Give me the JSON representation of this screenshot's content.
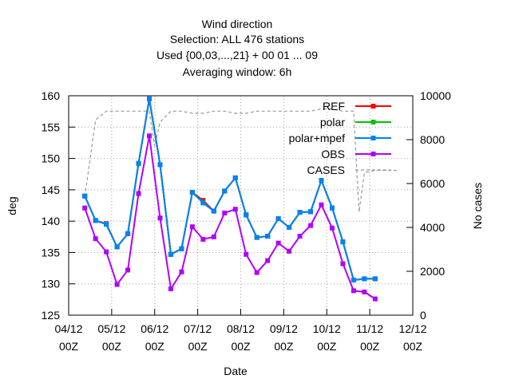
{
  "chart_data": {
    "type": "line",
    "title_lines": [
      "Wind direction",
      "Selection: ALL    476 stations",
      "Used {00,03,...,21} + 00 01 ... 09",
      "Averaging window:  6h"
    ],
    "xlabel": "Date",
    "ylabel": "deg",
    "y2label": "No cases",
    "xlim": [
      0,
      8
    ],
    "ylim": [
      125,
      160
    ],
    "y2lim": [
      0,
      10000
    ],
    "x_ticks": [
      {
        "x": 0,
        "l1": "04/12",
        "l2": "00Z"
      },
      {
        "x": 1,
        "l1": "05/12",
        "l2": "00Z"
      },
      {
        "x": 2,
        "l1": "06/12",
        "l2": "00Z"
      },
      {
        "x": 3,
        "l1": "07/12",
        "l2": "00Z"
      },
      {
        "x": 4,
        "l1": "08/12",
        "l2": "00Z"
      },
      {
        "x": 5,
        "l1": "09/12",
        "l2": "00Z"
      },
      {
        "x": 6,
        "l1": "10/12",
        "l2": "00Z"
      },
      {
        "x": 7,
        "l1": "11/12",
        "l2": "00Z"
      },
      {
        "x": 8,
        "l1": "12/12",
        "l2": "00Z"
      }
    ],
    "y_ticks": [
      125,
      130,
      135,
      140,
      145,
      150,
      155,
      160
    ],
    "y2_ticks": [
      0,
      2000,
      4000,
      6000,
      8000,
      10000
    ],
    "grid": true,
    "legend_position": "top-right",
    "series": [
      {
        "name": "REF",
        "color": "#ff0000",
        "x": [
          0.375,
          0.625,
          0.875,
          1.125,
          1.375,
          1.625,
          1.875,
          2.125,
          2.375,
          2.625,
          2.875,
          3.125,
          3.375,
          3.625,
          3.875,
          4.125,
          4.375,
          4.625,
          4.875,
          5.125,
          5.375,
          5.625,
          5.875,
          6.125,
          6.375,
          6.625,
          6.875,
          7.125
        ],
        "y": [
          144.0,
          140.1,
          139.6,
          135.9,
          138.0,
          149.2,
          159.5,
          149.0,
          134.7,
          135.6,
          144.6,
          143.3,
          141.6,
          144.8,
          146.9,
          141.0,
          137.4,
          137.6,
          140.4,
          139.0,
          141.4,
          141.5,
          146.5,
          142.1,
          136.7,
          130.6,
          130.8,
          130.8
        ]
      },
      {
        "name": "polar",
        "color": "#00c000",
        "x": [
          0.375,
          0.625,
          0.875,
          1.125,
          1.375,
          1.625,
          1.875,
          2.125,
          2.375,
          2.625,
          2.875,
          3.125,
          3.375,
          3.625,
          3.875,
          4.125,
          4.375,
          4.625,
          4.875,
          5.125,
          5.375,
          5.625,
          5.875,
          6.125,
          6.375,
          6.625,
          6.875,
          7.125
        ],
        "y": [
          144.0,
          140.1,
          139.5,
          135.9,
          138.0,
          149.2,
          159.5,
          149.0,
          134.7,
          135.6,
          144.6,
          143.0,
          141.6,
          144.8,
          146.9,
          141.0,
          137.4,
          137.6,
          140.4,
          139.0,
          141.4,
          141.5,
          146.5,
          142.1,
          136.7,
          130.6,
          130.8,
          130.8
        ]
      },
      {
        "name": "polar+mpef",
        "color": "#0080ff",
        "x": [
          0.375,
          0.625,
          0.875,
          1.125,
          1.375,
          1.625,
          1.875,
          2.125,
          2.375,
          2.625,
          2.875,
          3.125,
          3.375,
          3.625,
          3.875,
          4.125,
          4.375,
          4.625,
          4.875,
          5.125,
          5.375,
          5.625,
          5.875,
          6.125,
          6.375,
          6.625,
          6.875,
          7.125
        ],
        "y": [
          144.0,
          140.1,
          139.5,
          135.9,
          138.0,
          149.2,
          159.5,
          149.0,
          134.7,
          135.6,
          144.6,
          142.9,
          141.6,
          144.8,
          146.9,
          141.0,
          137.4,
          137.6,
          140.4,
          139.0,
          141.4,
          141.5,
          146.5,
          142.1,
          136.7,
          130.6,
          130.8,
          130.8
        ]
      },
      {
        "name": "OBS",
        "color": "#b000ff",
        "x": [
          0.375,
          0.625,
          0.875,
          1.125,
          1.375,
          1.625,
          1.875,
          2.125,
          2.375,
          2.625,
          2.875,
          3.125,
          3.375,
          3.625,
          3.875,
          4.125,
          4.375,
          4.625,
          4.875,
          5.125,
          5.375,
          5.625,
          5.875,
          6.125,
          6.375,
          6.625,
          6.875,
          7.125
        ],
        "y": [
          142.1,
          137.2,
          135.1,
          129.9,
          132.2,
          144.4,
          153.6,
          140.5,
          129.2,
          131.9,
          139.1,
          137.1,
          137.5,
          141.3,
          141.9,
          134.7,
          131.8,
          133.7,
          136.5,
          135.2,
          137.6,
          139.3,
          142.6,
          138.9,
          133.2,
          128.9,
          128.7,
          127.6
        ]
      },
      {
        "name": "CASES",
        "color": "#999999",
        "dashed": true,
        "axis": "y2",
        "x": [
          0.375,
          0.625,
          0.875,
          1.125,
          1.375,
          1.625,
          1.875,
          2.0,
          2.125,
          2.375,
          2.625,
          2.875,
          3.125,
          3.375,
          3.625,
          3.875,
          4.125,
          4.375,
          4.625,
          4.875,
          5.125,
          5.375,
          5.625,
          5.875,
          6.125,
          6.375,
          6.625,
          6.75,
          6.875,
          7.125,
          7.375,
          7.625
        ],
        "y": [
          5400,
          8900,
          9300,
          9300,
          9300,
          9300,
          9300,
          7700,
          8800,
          9300,
          9300,
          9200,
          9200,
          9300,
          9300,
          9200,
          9200,
          9300,
          9300,
          9300,
          9300,
          9300,
          9300,
          9400,
          9400,
          9300,
          9300,
          4700,
          6500,
          6600,
          6600,
          6600
        ]
      }
    ]
  }
}
